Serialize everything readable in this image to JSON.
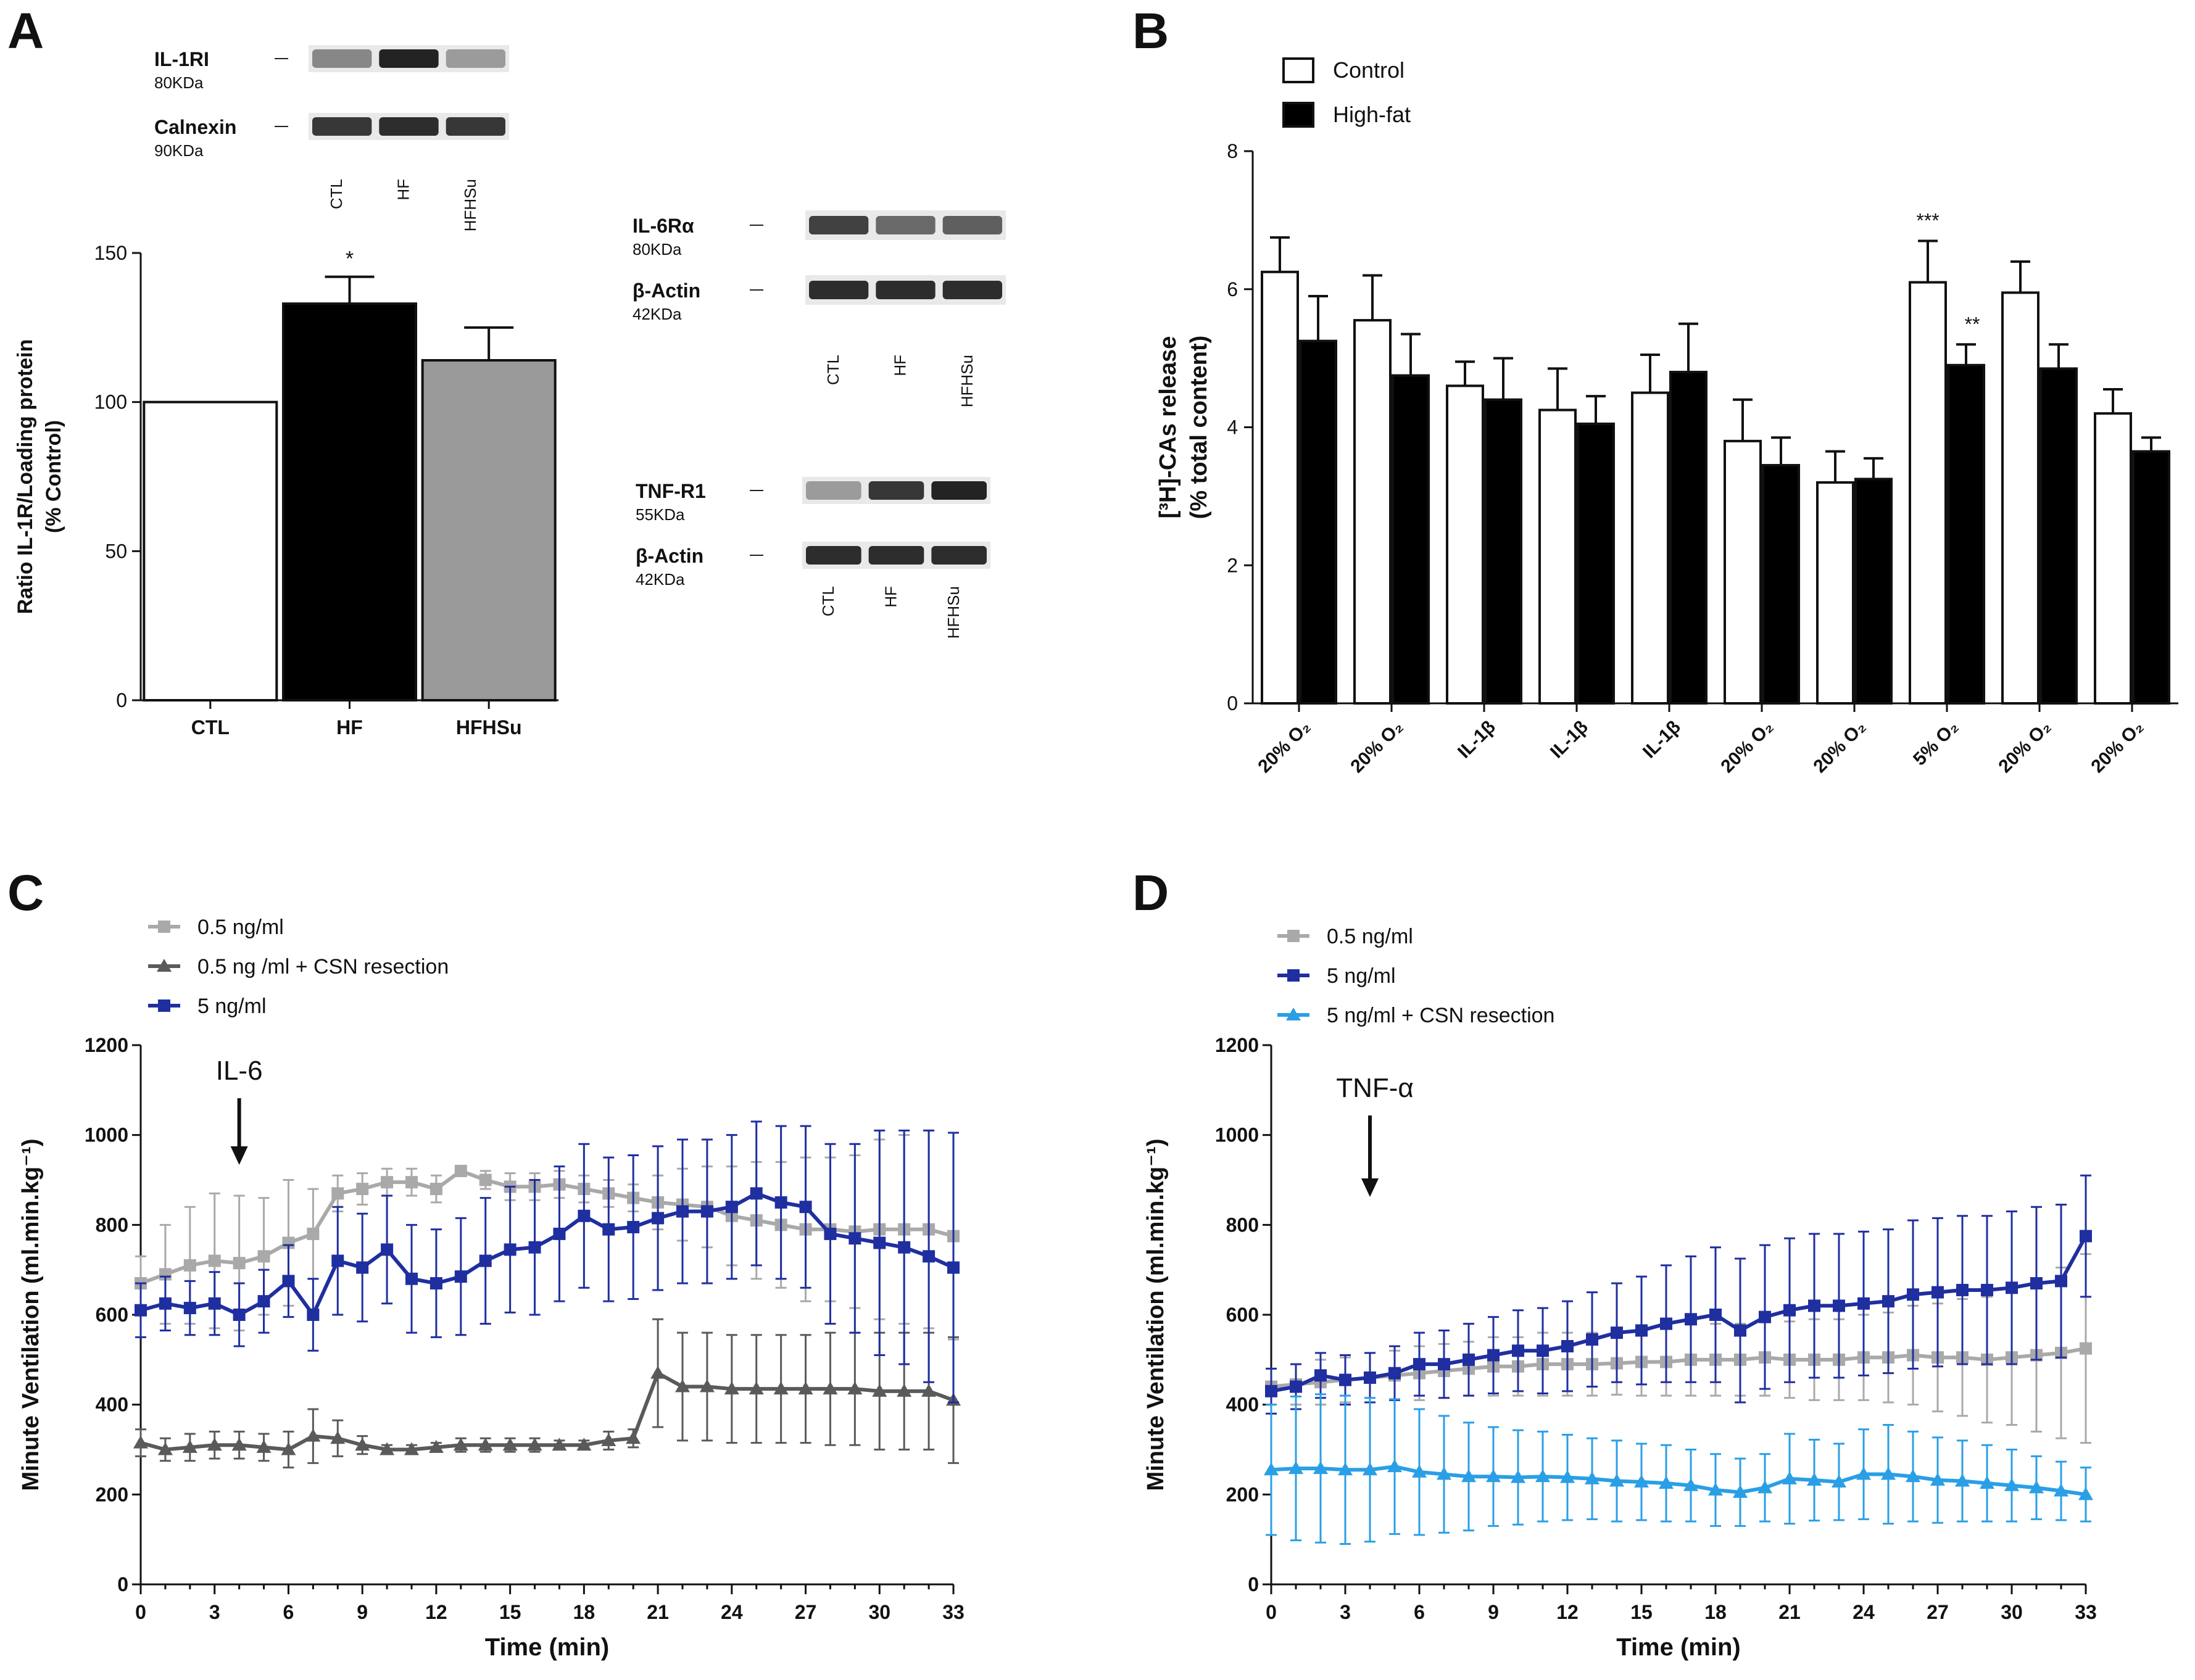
{
  "panelA": {
    "letter": "A",
    "blots_il1": [
      {
        "name": "IL-1RI",
        "kda": "80KDa",
        "bands": [
          0.45,
          0.95,
          0.35
        ]
      },
      {
        "name": "Calnexin",
        "kda": "90KDa",
        "bands": [
          0.85,
          0.9,
          0.85
        ]
      }
    ],
    "lanes_il1": [
      "CTL",
      "HF",
      "HFHSu"
    ],
    "blots_il6": [
      {
        "name": "IL-6Rα",
        "kda": "80KDa",
        "bands": [
          0.8,
          0.6,
          0.65
        ]
      },
      {
        "name": "β-Actin",
        "kda": "42KDa",
        "bands": [
          0.9,
          0.9,
          0.9
        ]
      }
    ],
    "lanes_il6": [
      "CTL",
      "HF",
      "HFHSu"
    ],
    "blots_tnf": [
      {
        "name": "TNF-R1",
        "kda": "55KDa",
        "bands": [
          0.35,
          0.85,
          0.95
        ]
      },
      {
        "name": "β-Actin",
        "kda": "42KDa",
        "bands": [
          0.9,
          0.9,
          0.9
        ]
      }
    ],
    "lanes_tnf": [
      "CTL",
      "HF",
      "HFHSu"
    ],
    "chart_data": {
      "type": "bar",
      "ylabel_line1": "Ratio IL-1R/Loading protein",
      "ylabel_line2": "(% Control)",
      "categories": [
        "CTL",
        "HF",
        "HFHSu"
      ],
      "values": [
        100,
        133,
        114
      ],
      "errors": [
        0,
        9,
        11
      ],
      "colors": [
        "#ffffff",
        "#000000",
        "#9a9a9a"
      ],
      "significance": [
        "",
        "*",
        ""
      ],
      "ylim": [
        0,
        150
      ],
      "yticks": [
        0,
        50,
        100,
        150
      ]
    }
  },
  "panelB": {
    "letter": "B",
    "chart_data": {
      "type": "bar",
      "ylabel_line1": "[³H]-CAs release",
      "ylabel_line2": "(% total content)",
      "categories": [
        "20% O₂",
        "20% O₂",
        "IL-1β",
        "IL-1β",
        "IL-1β",
        "20% O₂",
        "20% O₂",
        "5% O₂",
        "20% O₂",
        "20% O₂"
      ],
      "series": [
        {
          "name": "Control",
          "color": "#ffffff",
          "values": [
            6.25,
            5.55,
            4.6,
            4.25,
            4.5,
            3.8,
            3.2,
            6.1,
            5.95,
            4.2
          ],
          "errors": [
            0.5,
            0.65,
            0.35,
            0.6,
            0.55,
            0.6,
            0.45,
            0.6,
            0.45,
            0.35
          ]
        },
        {
          "name": "High-fat",
          "color": "#000000",
          "values": [
            5.25,
            4.75,
            4.4,
            4.05,
            4.8,
            3.45,
            3.25,
            4.9,
            4.85,
            3.65
          ],
          "errors": [
            0.65,
            0.6,
            0.6,
            0.4,
            0.7,
            0.4,
            0.3,
            0.3,
            0.35,
            0.2
          ]
        }
      ],
      "significance": [
        {
          "index": 7,
          "series": 0,
          "label": "***"
        },
        {
          "index": 7,
          "series": 1,
          "label": "**"
        }
      ],
      "ylim": [
        0,
        8
      ],
      "yticks": [
        0,
        2,
        4,
        6,
        8
      ],
      "legend_position": "top-left"
    }
  },
  "panelC": {
    "letter": "C",
    "annotation": "IL-6",
    "arrow_x": 4,
    "chart_data": {
      "type": "line",
      "xlabel": "Time (min)",
      "ylabel": "Minute Ventilation (ml.min.kg⁻¹)",
      "xlim": [
        0,
        33
      ],
      "ylim": [
        0,
        1200
      ],
      "xticks": [
        0,
        3,
        6,
        9,
        12,
        15,
        18,
        21,
        24,
        27,
        30,
        33
      ],
      "yticks": [
        0,
        200,
        400,
        600,
        800,
        1000,
        1200
      ],
      "legend_position": "top-left",
      "series": [
        {
          "name": "0.5 ng/ml",
          "color": "#a9a9a9",
          "marker": "square",
          "x": [
            0,
            1,
            2,
            3,
            4,
            5,
            6,
            7,
            8,
            9,
            10,
            11,
            12,
            13,
            14,
            15,
            16,
            17,
            18,
            19,
            20,
            21,
            22,
            23,
            24,
            25,
            26,
            27,
            28,
            29,
            30,
            31,
            32,
            33
          ],
          "y": [
            670,
            690,
            710,
            720,
            715,
            730,
            760,
            780,
            870,
            880,
            895,
            895,
            880,
            920,
            900,
            885,
            885,
            890,
            880,
            870,
            860,
            850,
            845,
            840,
            820,
            810,
            800,
            790,
            790,
            785,
            790,
            790,
            790,
            775
          ],
          "err": [
            60,
            110,
            130,
            150,
            150,
            130,
            140,
            100,
            40,
            35,
            30,
            30,
            30,
            10,
            20,
            30,
            30,
            30,
            30,
            30,
            30,
            60,
            80,
            90,
            110,
            130,
            140,
            160,
            160,
            170,
            200,
            210,
            220,
            230
          ]
        },
        {
          "name": "0.5 ng /ml + CSN resection",
          "color": "#5a5a5a",
          "marker": "triangle",
          "x": [
            0,
            1,
            2,
            3,
            4,
            5,
            6,
            7,
            8,
            9,
            10,
            11,
            12,
            13,
            14,
            15,
            16,
            17,
            18,
            19,
            20,
            21,
            22,
            23,
            24,
            25,
            26,
            27,
            28,
            29,
            30,
            31,
            32,
            33
          ],
          "y": [
            315,
            300,
            305,
            310,
            310,
            305,
            300,
            330,
            325,
            310,
            300,
            300,
            305,
            310,
            310,
            310,
            310,
            310,
            310,
            320,
            325,
            470,
            440,
            440,
            435,
            435,
            435,
            435,
            435,
            435,
            430,
            430,
            430,
            410
          ],
          "err": [
            30,
            25,
            30,
            30,
            30,
            30,
            40,
            60,
            40,
            20,
            10,
            10,
            10,
            15,
            15,
            15,
            15,
            10,
            10,
            20,
            20,
            120,
            120,
            120,
            120,
            120,
            120,
            120,
            125,
            125,
            130,
            130,
            130,
            140
          ]
        },
        {
          "name": "5 ng/ml",
          "color": "#1f2fa0",
          "marker": "square",
          "x": [
            0,
            1,
            2,
            3,
            4,
            5,
            6,
            7,
            8,
            9,
            10,
            11,
            12,
            13,
            14,
            15,
            16,
            17,
            18,
            19,
            20,
            21,
            22,
            23,
            24,
            25,
            26,
            27,
            28,
            29,
            30,
            31,
            32,
            33
          ],
          "y": [
            610,
            625,
            615,
            625,
            600,
            630,
            675,
            600,
            720,
            705,
            745,
            680,
            670,
            685,
            720,
            745,
            750,
            780,
            820,
            790,
            795,
            815,
            830,
            830,
            840,
            870,
            850,
            840,
            780,
            770,
            760,
            750,
            730,
            705
          ],
          "err": [
            60,
            60,
            60,
            70,
            70,
            70,
            80,
            80,
            120,
            120,
            120,
            120,
            120,
            130,
            140,
            140,
            150,
            150,
            160,
            160,
            160,
            160,
            160,
            160,
            160,
            160,
            170,
            180,
            200,
            210,
            250,
            260,
            280,
            300
          ]
        }
      ]
    }
  },
  "panelD": {
    "letter": "D",
    "annotation": "TNF-α",
    "arrow_x": 4,
    "chart_data": {
      "type": "line",
      "xlabel": "Time (min)",
      "ylabel": "Minute Ventilation (ml.min.kg⁻¹)",
      "xlim": [
        0,
        33
      ],
      "ylim": [
        0,
        1200
      ],
      "xticks": [
        0,
        3,
        6,
        9,
        12,
        15,
        18,
        21,
        24,
        27,
        30,
        33
      ],
      "yticks": [
        0,
        200,
        400,
        600,
        800,
        1000,
        1200
      ],
      "legend_position": "top-left",
      "series": [
        {
          "name": "0.5 ng/ml",
          "color": "#a9a9a9",
          "marker": "square",
          "x": [
            0,
            1,
            2,
            3,
            4,
            5,
            6,
            7,
            8,
            9,
            10,
            11,
            12,
            13,
            14,
            15,
            16,
            17,
            18,
            19,
            20,
            21,
            22,
            23,
            24,
            25,
            26,
            27,
            28,
            29,
            30,
            31,
            32,
            33
          ],
          "y": [
            440,
            445,
            450,
            455,
            460,
            465,
            470,
            475,
            480,
            485,
            485,
            490,
            490,
            490,
            492,
            495,
            495,
            500,
            500,
            500,
            505,
            500,
            500,
            500,
            505,
            505,
            510,
            505,
            505,
            500,
            505,
            510,
            515,
            525
          ],
          "err": [
            40,
            45,
            50,
            50,
            55,
            55,
            60,
            60,
            60,
            65,
            65,
            70,
            70,
            70,
            70,
            75,
            75,
            80,
            80,
            80,
            85,
            85,
            90,
            90,
            95,
            100,
            110,
            120,
            130,
            140,
            150,
            170,
            190,
            210
          ]
        },
        {
          "name": "5 ng/ml",
          "color": "#1f2fa0",
          "marker": "square",
          "x": [
            0,
            1,
            2,
            3,
            4,
            5,
            6,
            7,
            8,
            9,
            10,
            11,
            12,
            13,
            14,
            15,
            16,
            17,
            18,
            19,
            20,
            21,
            22,
            23,
            24,
            25,
            26,
            27,
            28,
            29,
            30,
            31,
            32,
            33
          ],
          "y": [
            430,
            440,
            465,
            455,
            460,
            470,
            490,
            490,
            500,
            510,
            520,
            520,
            530,
            545,
            560,
            565,
            580,
            590,
            600,
            565,
            595,
            610,
            620,
            620,
            625,
            630,
            645,
            650,
            655,
            655,
            660,
            670,
            675,
            775
          ],
          "err": [
            50,
            50,
            50,
            55,
            55,
            60,
            70,
            75,
            80,
            85,
            90,
            95,
            100,
            105,
            110,
            120,
            130,
            140,
            150,
            160,
            160,
            160,
            160,
            160,
            160,
            160,
            165,
            165,
            165,
            165,
            170,
            170,
            170,
            135
          ]
        },
        {
          "name": "5 ng/ml + CSN resection",
          "color": "#2a9fe6",
          "marker": "triangle",
          "x": [
            0,
            1,
            2,
            3,
            4,
            5,
            6,
            7,
            8,
            9,
            10,
            11,
            12,
            13,
            14,
            15,
            16,
            17,
            18,
            19,
            20,
            21,
            22,
            23,
            24,
            25,
            26,
            27,
            28,
            29,
            30,
            31,
            32,
            33
          ],
          "y": [
            255,
            258,
            258,
            255,
            255,
            262,
            250,
            245,
            240,
            240,
            238,
            240,
            238,
            235,
            230,
            228,
            225,
            220,
            210,
            205,
            215,
            235,
            232,
            228,
            245,
            245,
            240,
            232,
            230,
            225,
            220,
            215,
            208,
            200
          ],
          "err": [
            145,
            160,
            165,
            165,
            160,
            150,
            140,
            130,
            120,
            110,
            105,
            100,
            95,
            90,
            90,
            85,
            85,
            80,
            80,
            75,
            75,
            100,
            90,
            85,
            100,
            110,
            100,
            95,
            90,
            85,
            80,
            70,
            65,
            60
          ]
        }
      ]
    }
  }
}
